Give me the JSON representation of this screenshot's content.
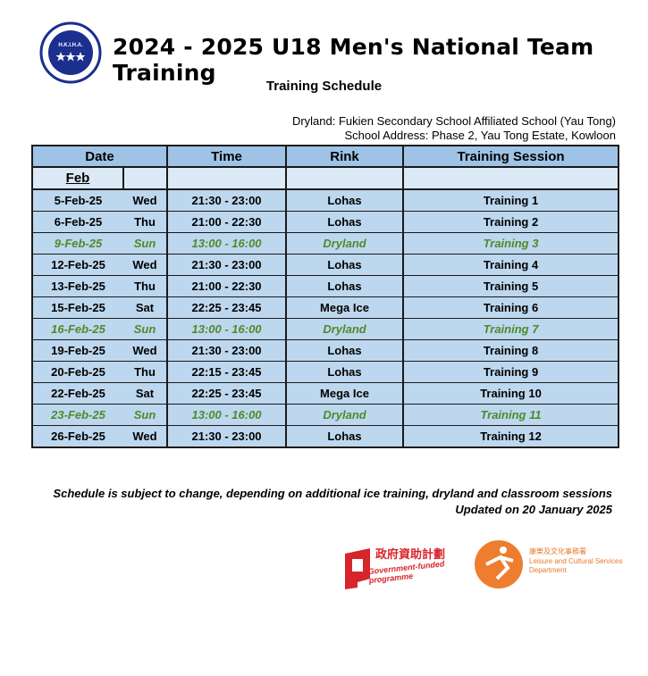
{
  "header": {
    "title": "2024 - 2025 U18 Men's National Team Training",
    "subtitle": "Training Schedule",
    "logo_text": "H.K.I.H.A."
  },
  "venue": {
    "dryland": "Dryland: Fukien Secondary School Affiliated School (Yau Tong)",
    "address": "School Address: Phase 2, Yau Tong Estate, Kowloon"
  },
  "table": {
    "columns": [
      "Date",
      "Time",
      "Rink",
      "Training Session"
    ],
    "month": "Feb",
    "rows": [
      {
        "date": "5-Feb-25",
        "day": "Wed",
        "time": "21:30 - 23:00",
        "rink": "Lohas",
        "session": "Training 1",
        "highlight": false
      },
      {
        "date": "6-Feb-25",
        "day": "Thu",
        "time": "21:00 - 22:30",
        "rink": "Lohas",
        "session": "Training 2",
        "highlight": false
      },
      {
        "date": "9-Feb-25",
        "day": "Sun",
        "time": "13:00 - 16:00",
        "rink": "Dryland",
        "session": "Training 3",
        "highlight": true
      },
      {
        "date": "12-Feb-25",
        "day": "Wed",
        "time": "21:30 - 23:00",
        "rink": "Lohas",
        "session": "Training 4",
        "highlight": false
      },
      {
        "date": "13-Feb-25",
        "day": "Thu",
        "time": "21:00 - 22:30",
        "rink": "Lohas",
        "session": "Training 5",
        "highlight": false
      },
      {
        "date": "15-Feb-25",
        "day": "Sat",
        "time": "22:25 - 23:45",
        "rink": "Mega Ice",
        "session": "Training 6",
        "highlight": false
      },
      {
        "date": "16-Feb-25",
        "day": "Sun",
        "time": "13:00 - 16:00",
        "rink": "Dryland",
        "session": "Training 7",
        "highlight": true
      },
      {
        "date": "19-Feb-25",
        "day": "Wed",
        "time": "21:30 - 23:00",
        "rink": "Lohas",
        "session": "Training 8",
        "highlight": false
      },
      {
        "date": "20-Feb-25",
        "day": "Thu",
        "time": "22:15 - 23:45",
        "rink": "Lohas",
        "session": "Training 9",
        "highlight": false
      },
      {
        "date": "22-Feb-25",
        "day": "Sat",
        "time": "22:25 - 23:45",
        "rink": "Mega Ice",
        "session": "Training 10",
        "highlight": false
      },
      {
        "date": "23-Feb-25",
        "day": "Sun",
        "time": "13:00 - 16:00",
        "rink": "Dryland",
        "session": "Training 11",
        "highlight": true
      },
      {
        "date": "26-Feb-25",
        "day": "Wed",
        "time": "21:30 - 23:00",
        "rink": "Lohas",
        "session": "Training 12",
        "highlight": false
      }
    ]
  },
  "footer": {
    "note": "Schedule is subject to change, depending on additional ice training, dryland and classroom sessions",
    "updated": "Updated on 20 January 2025"
  },
  "sponsors": {
    "gov_zh": "政府資助計劃",
    "gov_en": "Government-funded programme",
    "lcsd_zh": "康樂及文化事務署",
    "lcsd_en": "Leisure and Cultural Services Department"
  }
}
